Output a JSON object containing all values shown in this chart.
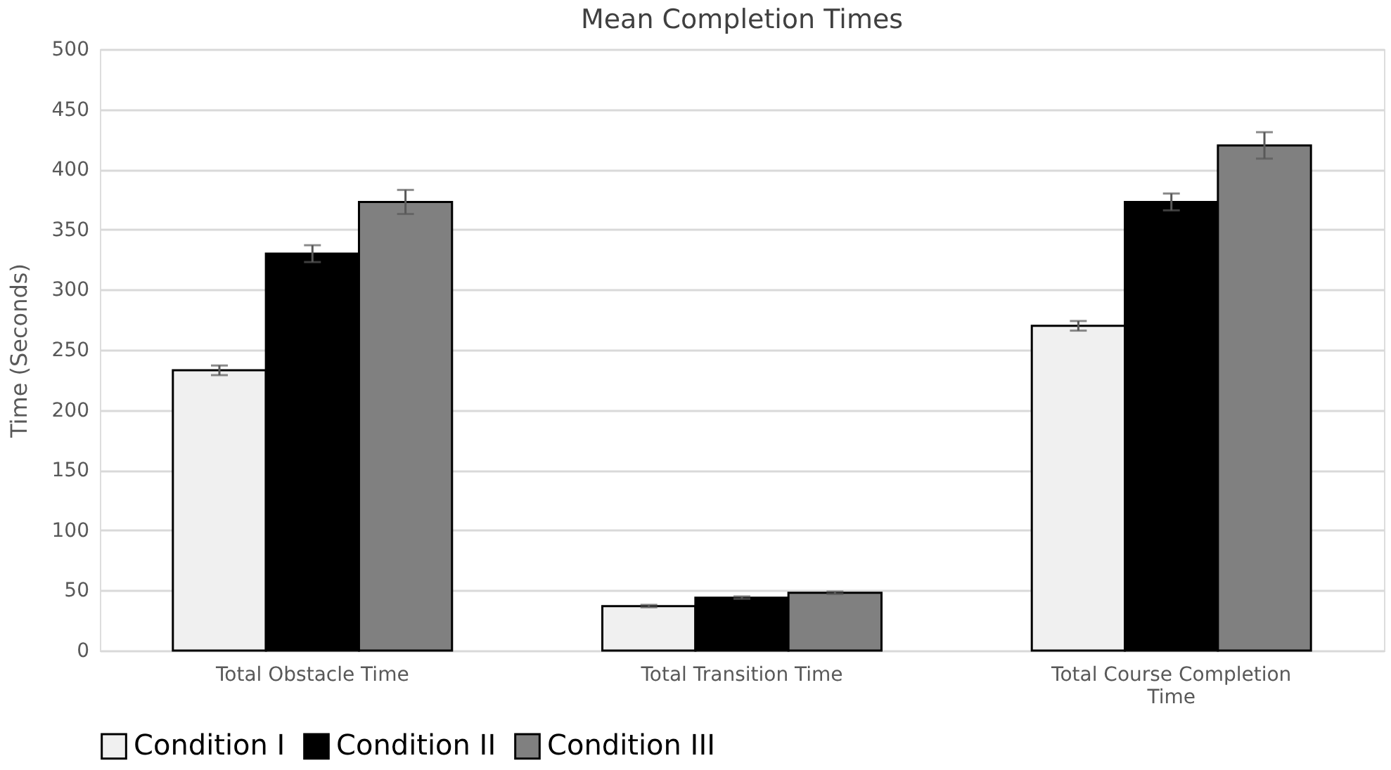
{
  "chart_data": {
    "type": "bar",
    "title": "Mean Completion Times",
    "ylabel": "Time (Seconds)",
    "categories": [
      "Total Obstacle Time",
      "Total Transition Time",
      "Total Course Completion Time"
    ],
    "series": [
      {
        "name": "Condition I",
        "color": "#f0f0f0",
        "values": [
          233,
          37,
          270
        ],
        "errors": [
          4,
          1,
          4
        ]
      },
      {
        "name": "Condition II",
        "color": "#000000",
        "values": [
          330,
          44,
          373
        ],
        "errors": [
          7,
          1,
          7
        ]
      },
      {
        "name": "Condition III",
        "color": "#808080",
        "values": [
          373,
          48,
          420
        ],
        "errors": [
          10,
          1,
          11
        ]
      }
    ],
    "ylim": [
      0,
      500
    ],
    "yticks": [
      0,
      50,
      100,
      150,
      200,
      250,
      300,
      350,
      400,
      450,
      500
    ],
    "grid": "y",
    "legend": "bottom"
  }
}
